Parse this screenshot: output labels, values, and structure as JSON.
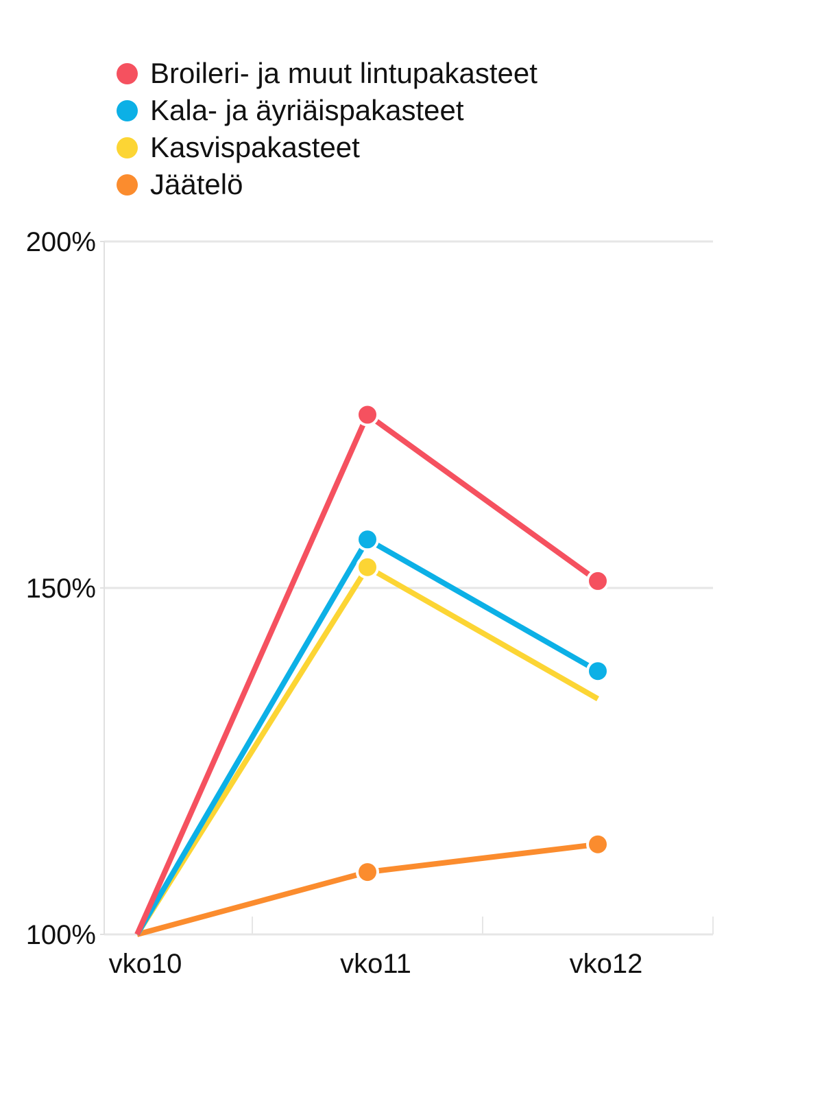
{
  "chart_data": {
    "type": "line",
    "categories": [
      "vko10",
      "vko11",
      "vko12"
    ],
    "series": [
      {
        "name": "Broileri- ja muut lintupakasteet",
        "color": "#f5515f",
        "values": [
          100,
          175,
          151
        ],
        "markers": [
          false,
          true,
          true
        ]
      },
      {
        "name": "Kala- ja äyriäispakasteet",
        "color": "#0cb0e6",
        "values": [
          100,
          157,
          138
        ],
        "markers": [
          false,
          true,
          true
        ]
      },
      {
        "name": "Kasvispakasteet",
        "color": "#fcd534",
        "values": [
          100,
          153,
          134
        ],
        "markers": [
          false,
          true,
          false
        ]
      },
      {
        "name": "Jäätelö",
        "color": "#fb8c2e",
        "values": [
          100,
          109,
          113
        ],
        "markers": [
          false,
          true,
          true
        ]
      }
    ],
    "ylim": [
      100,
      200
    ],
    "yticks": [
      200,
      150,
      100
    ],
    "ytick_labels": [
      "200%",
      "150%",
      "100%"
    ],
    "grid": true,
    "legend_position": "top-left",
    "title": "",
    "xlabel": "",
    "ylabel": ""
  }
}
